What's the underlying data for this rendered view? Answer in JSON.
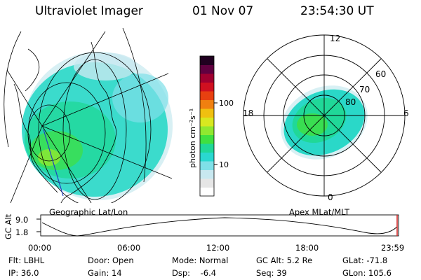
{
  "header": {
    "instrument": "Ultraviolet Imager",
    "date": "01 Nov 07",
    "time": "23:54:30 UT"
  },
  "panels": {
    "geographic_label": "Geographic Lat/Lon",
    "apex_label": "Apex MLat/MLT"
  },
  "colorbar": {
    "unit_label": "photon cm⁻²s⁻¹",
    "scale": "log",
    "tick_labels": [
      "100",
      "10"
    ],
    "colors": [
      "#ffffff",
      "#e6e6e6",
      "#c8e8f0",
      "#7fe0e8",
      "#2ad8d0",
      "#20d898",
      "#40e040",
      "#90e830",
      "#d8e820",
      "#f0c010",
      "#f08010",
      "#e84010",
      "#d01020",
      "#a00030",
      "#600040",
      "#200020"
    ]
  },
  "apex_grid": {
    "mlt_labels": [
      "12",
      "18",
      "6",
      "0"
    ],
    "mlat_labels": [
      "60",
      "70",
      "80"
    ]
  },
  "timeline": {
    "ylabel": "GC Alt",
    "y_ticks": [
      "9.0",
      "1.8"
    ],
    "x_ticks": [
      "00:00",
      "06:00",
      "12:00",
      "18:00",
      "23:59"
    ],
    "line_color": "#000000",
    "marker_color": "#d02020"
  },
  "info": {
    "flt": "Flt: LBHL",
    "ip": "IP: 36.0",
    "door": "Door: Open",
    "gain": "Gain: 14",
    "mode": "Mode: Normal",
    "dsp": "Dsp:    -6.4",
    "gc_alt": "GC Alt: 5.2 Re",
    "seq": "Seq: 39",
    "glat": "GLat: -71.8",
    "glon": "GLon: 105.6"
  },
  "chart_data": [
    {
      "type": "heatmap",
      "title": "Geographic Lat/Lon",
      "description_of_content": "UV auroral emission image projected on geographic map"
    },
    {
      "type": "heatmap",
      "title": "Apex MLat/MLT",
      "radial_ticks": [
        "80",
        "70",
        "60"
      ],
      "angular_ticks": [
        "12",
        "18",
        "6",
        "0"
      ]
    },
    {
      "type": "line",
      "ylabel": "GC Alt",
      "y_ticks": [
        1.8,
        9.0
      ],
      "x_ticks": [
        "00:00",
        "06:00",
        "12:00",
        "18:00",
        "23:59"
      ]
    }
  ]
}
